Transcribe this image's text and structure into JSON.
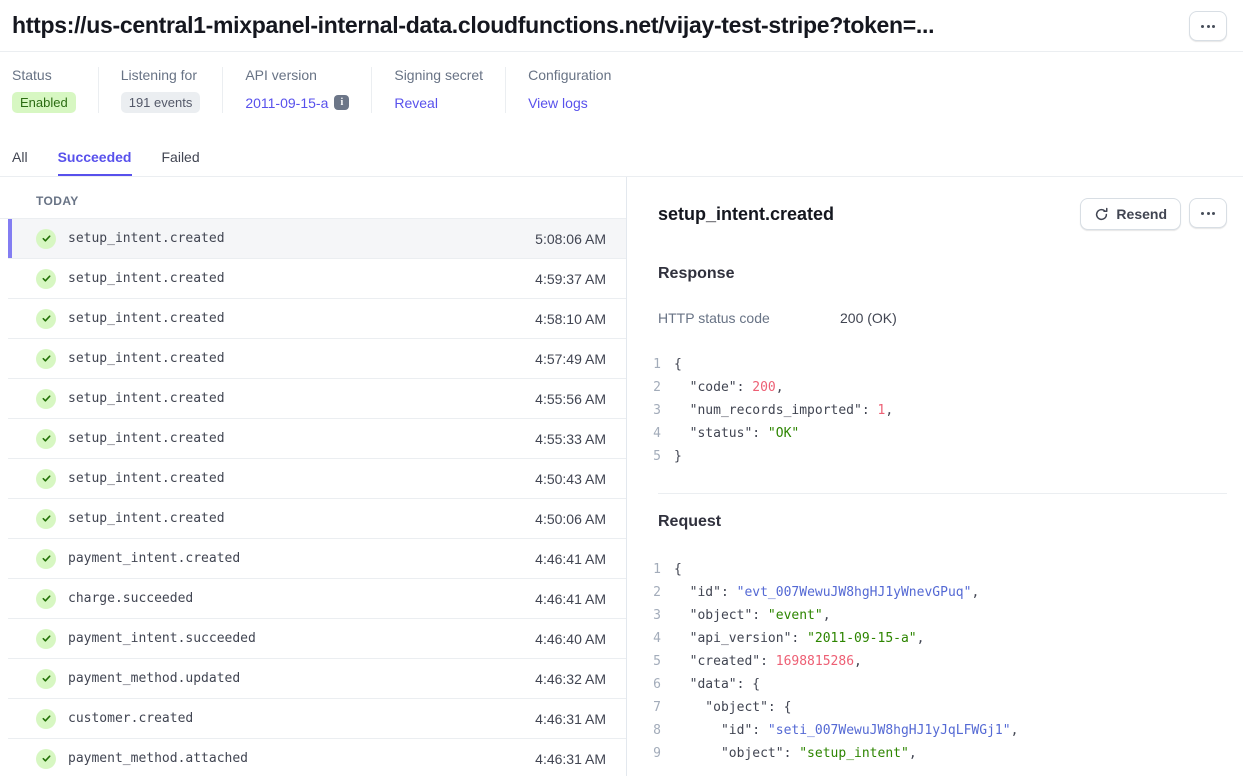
{
  "header": {
    "title": "https://us-central1-mixpanel-internal-data.cloudfunctions.net/vijay-test-stripe?token=..."
  },
  "meta": [
    {
      "label": "Status",
      "value": "Enabled",
      "style": "badge-green"
    },
    {
      "label": "Listening for",
      "value": "191 events",
      "style": "badge-gray"
    },
    {
      "label": "API version",
      "value": "2011-09-15-a",
      "style": "link",
      "icon": "info-icon",
      "icon_glyph": "i"
    },
    {
      "label": "Signing secret",
      "value": "Reveal",
      "style": "link"
    },
    {
      "label": "Configuration",
      "value": "View logs",
      "style": "link"
    }
  ],
  "tabs": [
    {
      "label": "All",
      "active": false
    },
    {
      "label": "Succeeded",
      "active": true
    },
    {
      "label": "Failed",
      "active": false
    }
  ],
  "event_list": {
    "section_label": "TODAY",
    "rows": [
      {
        "name": "setup_intent.created",
        "time": "5:08:06 AM",
        "selected": true
      },
      {
        "name": "setup_intent.created",
        "time": "4:59:37 AM",
        "selected": false
      },
      {
        "name": "setup_intent.created",
        "time": "4:58:10 AM",
        "selected": false
      },
      {
        "name": "setup_intent.created",
        "time": "4:57:49 AM",
        "selected": false
      },
      {
        "name": "setup_intent.created",
        "time": "4:55:56 AM",
        "selected": false
      },
      {
        "name": "setup_intent.created",
        "time": "4:55:33 AM",
        "selected": false
      },
      {
        "name": "setup_intent.created",
        "time": "4:50:43 AM",
        "selected": false
      },
      {
        "name": "setup_intent.created",
        "time": "4:50:06 AM",
        "selected": false
      },
      {
        "name": "payment_intent.created",
        "time": "4:46:41 AM",
        "selected": false
      },
      {
        "name": "charge.succeeded",
        "time": "4:46:41 AM",
        "selected": false
      },
      {
        "name": "payment_intent.succeeded",
        "time": "4:46:40 AM",
        "selected": false
      },
      {
        "name": "payment_method.updated",
        "time": "4:46:32 AM",
        "selected": false
      },
      {
        "name": "customer.created",
        "time": "4:46:31 AM",
        "selected": false
      },
      {
        "name": "payment_method.attached",
        "time": "4:46:31 AM",
        "selected": false
      }
    ]
  },
  "detail": {
    "title": "setup_intent.created",
    "resend_label": "Resend",
    "response": {
      "heading": "Response",
      "http_status_label": "HTTP status code",
      "http_status_value": "200 (OK)",
      "code": [
        [
          {
            "t": "{",
            "c": "plain"
          }
        ],
        [
          {
            "t": "  \"code\": ",
            "c": "plain"
          },
          {
            "t": "200",
            "c": "num"
          },
          {
            "t": ",",
            "c": "plain"
          }
        ],
        [
          {
            "t": "  \"num_records_imported\": ",
            "c": "plain"
          },
          {
            "t": "1",
            "c": "num"
          },
          {
            "t": ",",
            "c": "plain"
          }
        ],
        [
          {
            "t": "  \"status\": ",
            "c": "plain"
          },
          {
            "t": "\"OK\"",
            "c": "str"
          }
        ],
        [
          {
            "t": "}",
            "c": "plain"
          }
        ]
      ]
    },
    "request": {
      "heading": "Request",
      "code": [
        [
          {
            "t": "{",
            "c": "plain"
          }
        ],
        [
          {
            "t": "  \"id\": ",
            "c": "plain"
          },
          {
            "t": "\"evt_007WewuJW8hgHJ1yWnevGPuq\"",
            "c": "id"
          },
          {
            "t": ",",
            "c": "plain"
          }
        ],
        [
          {
            "t": "  \"object\": ",
            "c": "plain"
          },
          {
            "t": "\"event\"",
            "c": "str"
          },
          {
            "t": ",",
            "c": "plain"
          }
        ],
        [
          {
            "t": "  \"api_version\": ",
            "c": "plain"
          },
          {
            "t": "\"2011-09-15-a\"",
            "c": "str"
          },
          {
            "t": ",",
            "c": "plain"
          }
        ],
        [
          {
            "t": "  \"created\": ",
            "c": "plain"
          },
          {
            "t": "1698815286",
            "c": "num"
          },
          {
            "t": ",",
            "c": "plain"
          }
        ],
        [
          {
            "t": "  \"data\": {",
            "c": "plain"
          }
        ],
        [
          {
            "t": "    \"object\": {",
            "c": "plain"
          }
        ],
        [
          {
            "t": "      \"id\": ",
            "c": "plain"
          },
          {
            "t": "\"seti_007WewuJW8hgHJ1yJqLFWGj1\"",
            "c": "id"
          },
          {
            "t": ",",
            "c": "plain"
          }
        ],
        [
          {
            "t": "      \"object\": ",
            "c": "plain"
          },
          {
            "t": "\"setup_intent\"",
            "c": "str"
          },
          {
            "t": ",",
            "c": "plain"
          }
        ]
      ]
    }
  },
  "colors": {
    "accent_purple": "#5851ec",
    "selected_bar_purple": "#837df2",
    "badge_green_bg": "#d7f7c2",
    "badge_green_text": "#2b6c12",
    "badge_gray_bg": "#ebeef1",
    "badge_gray_text": "#545969",
    "code_number": "#ed5f74",
    "code_string": "#2d8500",
    "code_id": "#5469d4"
  }
}
